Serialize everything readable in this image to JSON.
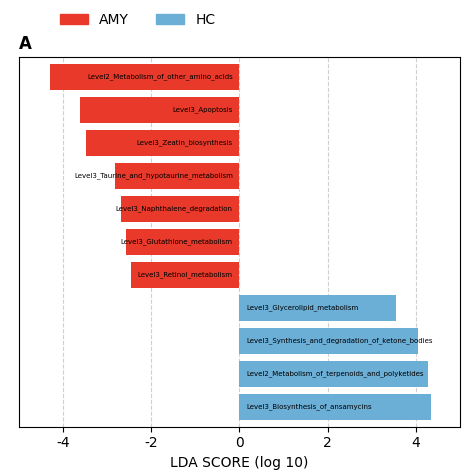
{
  "chart_data": {
    "type": "bar",
    "orientation": "horizontal",
    "title": "A",
    "categories": [
      "Level3_Biosynthesis_of_ansamycins",
      "Level2_Metabolism_of_terpenoids_and_polyketides",
      "Level3_Synthesis_and_degradation_of_ketone_bodies",
      "Level3_Glycerolipid_metabolism",
      "Level3_Retinol_metabolism",
      "Level3_Glutathione_metabolism",
      "Level3_Naphthalene_degradation",
      "Level3_Taurine_and_hypotaurine_metabolism",
      "Level3_Zeatin_biosynthesis",
      "Level3_Apoptosis",
      "Level2_Metabolism_of_other_amino_acids"
    ],
    "series": [
      {
        "name": "AMY",
        "color": "#e8392a",
        "values": [
          null,
          null,
          null,
          null,
          -2.45,
          -2.58,
          -2.68,
          -2.82,
          -3.48,
          -3.62,
          -4.3
        ]
      },
      {
        "name": "HC",
        "color": "#6baed6",
        "values": [
          4.35,
          4.28,
          4.05,
          3.55,
          null,
          null,
          null,
          null,
          null,
          null,
          null
        ]
      }
    ],
    "xlabel": "LDA SCORE (log 10)",
    "xlim": [
      -5,
      5
    ],
    "xticks": [
      -4,
      -2,
      0,
      2,
      4
    ],
    "grid": true,
    "legend": "upper left",
    "tick_labels": "x"
  }
}
